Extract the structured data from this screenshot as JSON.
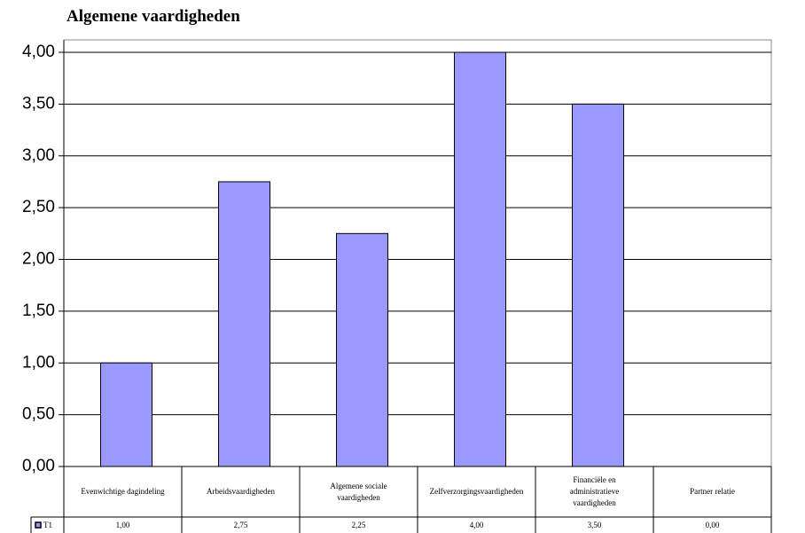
{
  "chart_data": {
    "type": "bar",
    "title": "Algemene vaardigheden",
    "categories": [
      "Evenwichtige dagindeling",
      "Arbeidsvaardigheden",
      "Algemene sociale vaardigheden",
      "Zelfverzorgingsvaardigheden",
      "Financiële en administratieve vaardigheden",
      "Partner relatie"
    ],
    "series": [
      {
        "name": "T1",
        "color": "#9999ff",
        "values": [
          1,
          2.75,
          2.25,
          4,
          3.5,
          0
        ],
        "value_labels": [
          "1,00",
          "2,75",
          "2,25",
          "4,00",
          "3,50",
          "0,00"
        ]
      }
    ],
    "ylim": [
      0,
      4
    ],
    "yticks": [
      {
        "value": 0,
        "label": "0,00"
      },
      {
        "value": 0.5,
        "label": "0,50"
      },
      {
        "value": 1,
        "label": "1,00"
      },
      {
        "value": 1.5,
        "label": "1,50"
      },
      {
        "value": 2,
        "label": "2,00"
      },
      {
        "value": 2.5,
        "label": "2,50"
      },
      {
        "value": 3,
        "label": "3,00"
      },
      {
        "value": 3.5,
        "label": "3,50"
      },
      {
        "value": 4,
        "label": "4,00"
      }
    ],
    "grid": true
  }
}
